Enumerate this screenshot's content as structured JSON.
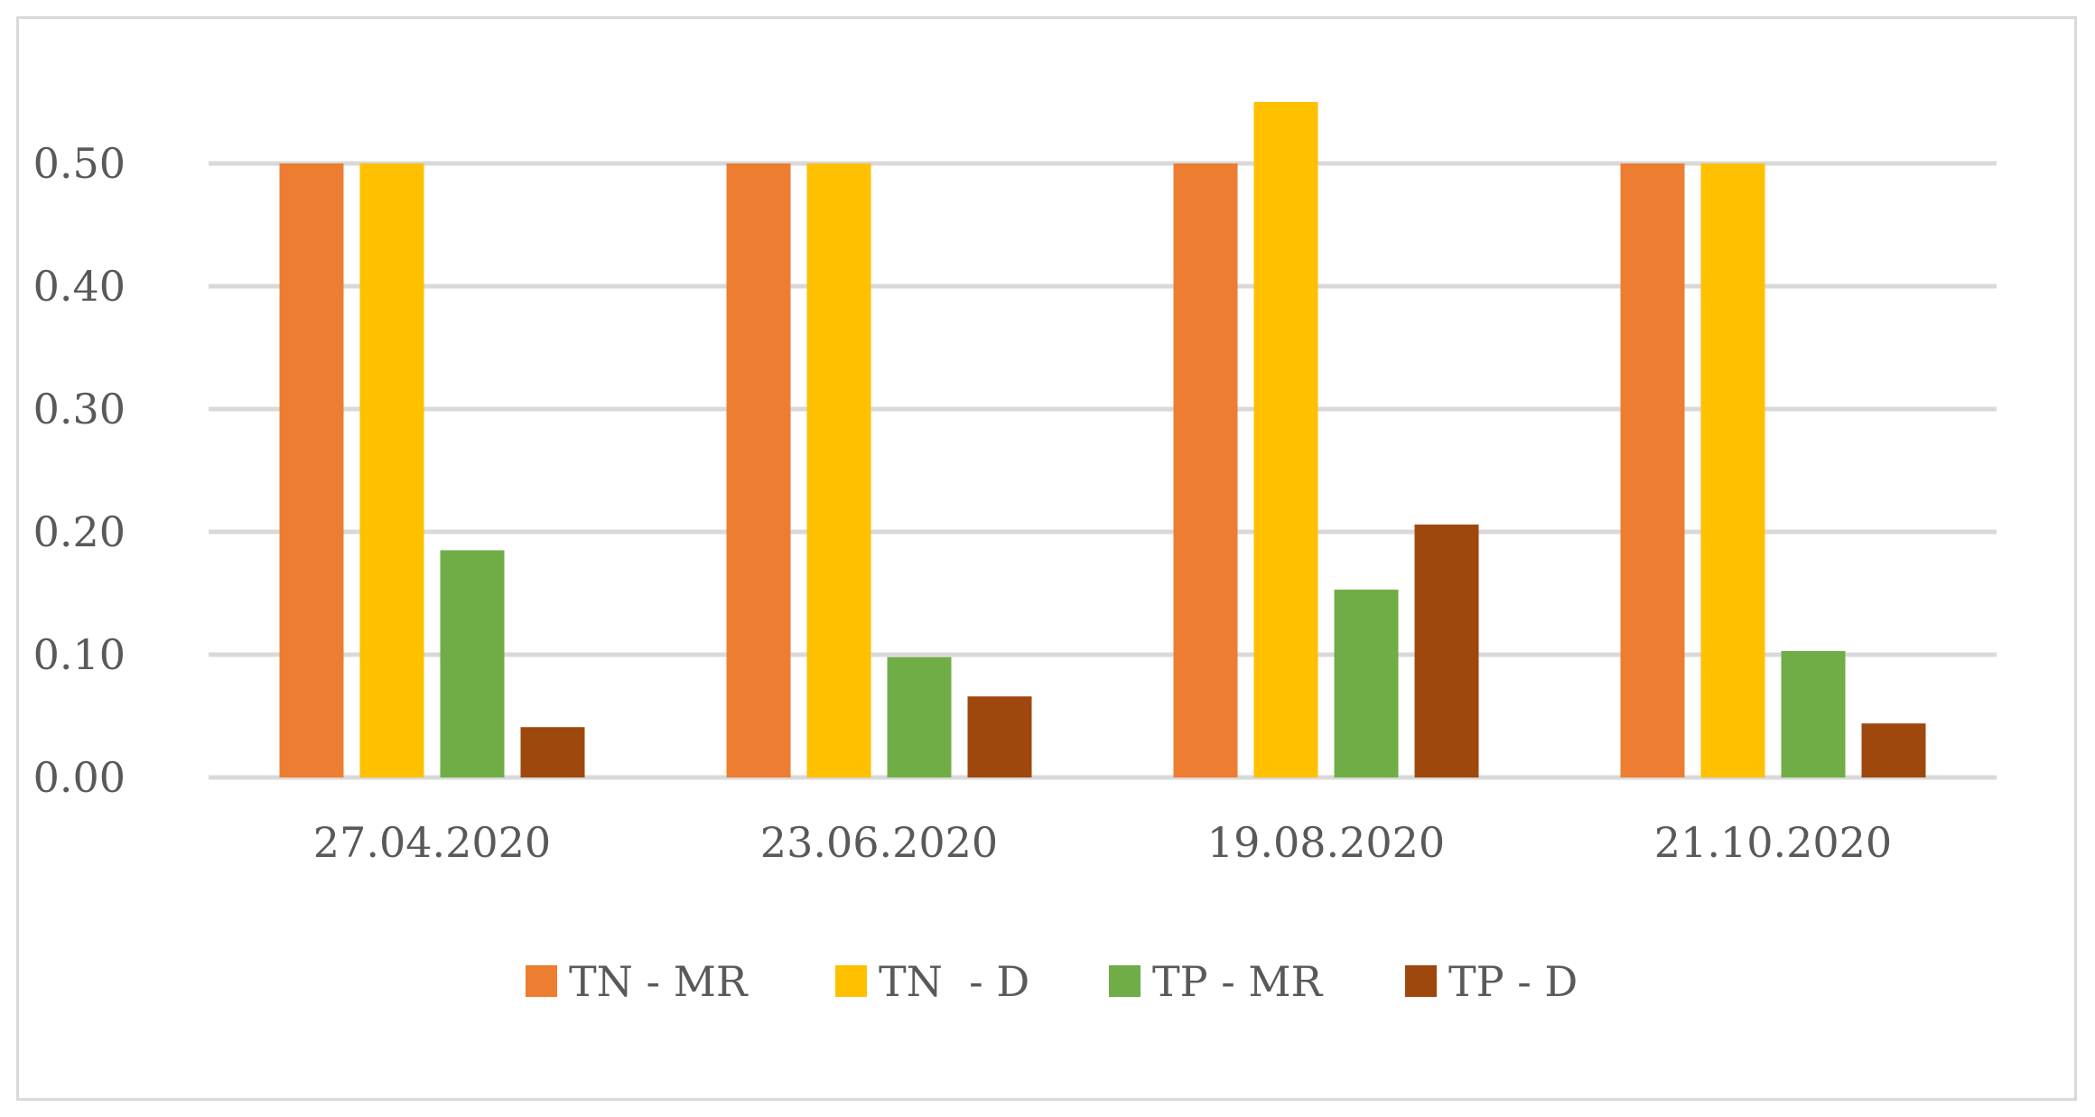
{
  "chart_data": {
    "type": "bar",
    "title": "",
    "xlabel": "",
    "ylabel": "",
    "ylim": [
      0,
      0.55
    ],
    "yticks": [
      0.0,
      0.1,
      0.2,
      0.3,
      0.4,
      0.5
    ],
    "ytick_labels": [
      "0.00",
      "0.10",
      "0.20",
      "0.30",
      "0.40",
      "0.50"
    ],
    "grid": true,
    "legend_position": "bottom",
    "categories": [
      "27.04.2020",
      "23.06.2020",
      "19.08.2020",
      "21.10.2020"
    ],
    "series": [
      {
        "name": "TN - MR",
        "color": "#ed7d31",
        "values": [
          0.5,
          0.5,
          0.5,
          0.5
        ]
      },
      {
        "name": "TN  - D",
        "color": "#ffc000",
        "values": [
          0.5,
          0.5,
          0.55,
          0.5
        ]
      },
      {
        "name": "TP - MR",
        "color": "#70ad47",
        "values": [
          0.185,
          0.098,
          0.153,
          0.103
        ]
      },
      {
        "name": "TP - D",
        "color": "#9e480e",
        "values": [
          0.041,
          0.066,
          0.206,
          0.044
        ]
      }
    ],
    "colors": {
      "grid": "#d9d9d9",
      "text": "#595959",
      "frame": "#d9d9d9"
    }
  }
}
